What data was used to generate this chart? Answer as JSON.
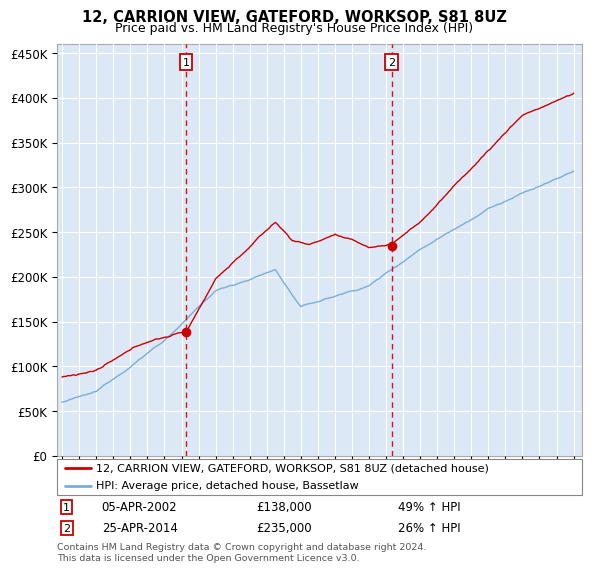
{
  "title": "12, CARRION VIEW, GATEFORD, WORKSOP, S81 8UZ",
  "subtitle": "Price paid vs. HM Land Registry's House Price Index (HPI)",
  "legend_line1": "12, CARRION VIEW, GATEFORD, WORKSOP, S81 8UZ (detached house)",
  "legend_line2": "HPI: Average price, detached house, Bassetlaw",
  "transaction1_date": "05-APR-2002",
  "transaction1_price": "£138,000",
  "transaction1_hpi": "49% ↑ HPI",
  "transaction2_date": "25-APR-2014",
  "transaction2_price": "£235,000",
  "transaction2_hpi": "26% ↑ HPI",
  "footer": "Contains HM Land Registry data © Crown copyright and database right 2024.\nThis data is licensed under the Open Government Licence v3.0.",
  "plot_bg": "#dce8f5",
  "shade_bg": "#dce8f5",
  "line_red": "#cc0000",
  "line_blue": "#7aaed6",
  "vline_color": "#cc0000",
  "grid_color": "#ffffff",
  "ylim": [
    0,
    460000
  ],
  "yticks": [
    0,
    50000,
    100000,
    150000,
    200000,
    250000,
    300000,
    350000,
    400000,
    450000
  ],
  "ytick_labels": [
    "£0",
    "£50K",
    "£100K",
    "£150K",
    "£200K",
    "£250K",
    "£300K",
    "£350K",
    "£400K",
    "£450K"
  ],
  "transaction1_x": 2002.27,
  "transaction1_y": 138000,
  "transaction2_x": 2014.32,
  "transaction2_y": 235000,
  "xlim_left": 1994.7,
  "xlim_right": 2025.5
}
